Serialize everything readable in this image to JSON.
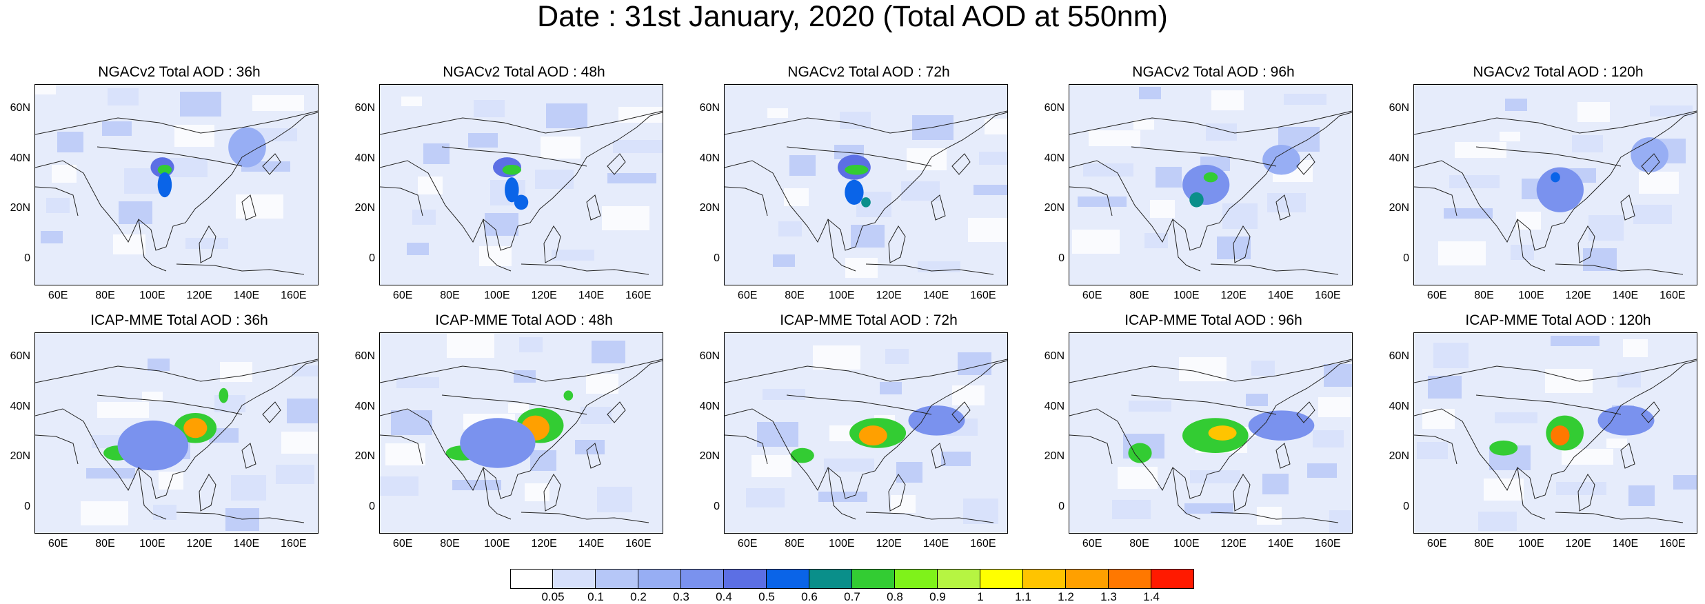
{
  "title": "Date : 31st January, 2020 (Total AOD at 550nm)",
  "axis": {
    "y_ticks": [
      "60N",
      "40N",
      "20N",
      "0"
    ],
    "x_ticks": [
      "60E",
      "80E",
      "100E",
      "120E",
      "140E",
      "160E"
    ]
  },
  "panels": [
    {
      "title": "NGACv2 Total AOD : 36h"
    },
    {
      "title": "NGACv2 Total AOD : 48h"
    },
    {
      "title": "NGACv2 Total AOD : 72h"
    },
    {
      "title": "NGACv2 Total AOD : 96h"
    },
    {
      "title": "NGACv2 Total AOD : 120h"
    },
    {
      "title": "ICAP-MME Total AOD : 36h"
    },
    {
      "title": "ICAP-MME Total AOD : 48h"
    },
    {
      "title": "ICAP-MME Total AOD : 72h"
    },
    {
      "title": "ICAP-MME Total AOD : 96h"
    },
    {
      "title": "ICAP-MME Total AOD : 120h"
    }
  ],
  "colorbar": {
    "labels": [
      "0.05",
      "0.1",
      "0.2",
      "0.3",
      "0.4",
      "0.5",
      "0.6",
      "0.7",
      "0.8",
      "0.9",
      "1",
      "1.1",
      "1.2",
      "1.3",
      "1.4"
    ],
    "colors": [
      "#ffffff",
      "#d6e0fb",
      "#b6c7f7",
      "#97aef4",
      "#7a92ee",
      "#5c6fe4",
      "#0a64e8",
      "#0a8f8a",
      "#33cc33",
      "#7ff21a",
      "#b6f542",
      "#ffff00",
      "#ffc400",
      "#ffa000",
      "#ff7800",
      "#ff1a00"
    ]
  }
}
